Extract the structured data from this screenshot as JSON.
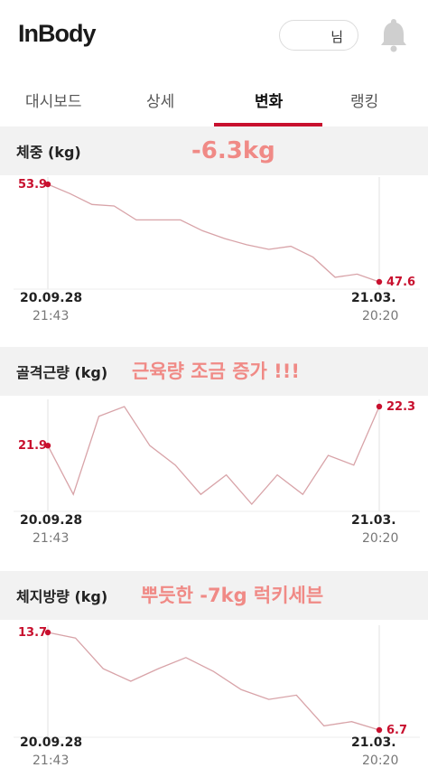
{
  "header": {
    "logo": "InBody",
    "user_suffix": "님"
  },
  "tabs": [
    {
      "label": "대시보드",
      "active": false
    },
    {
      "label": "상세",
      "active": false
    },
    {
      "label": "변화",
      "active": true
    },
    {
      "label": "랭킹",
      "active": false
    }
  ],
  "accent_color": "#c8102e",
  "sections": [
    {
      "title": "체중 (kg)",
      "annotation": "-6.3kg",
      "start_date": "20.09.28",
      "start_time": "21:43",
      "end_date": "21.03.",
      "end_time": "20:20"
    },
    {
      "title": "골격근량 (kg)",
      "annotation": "근육량 조금 증가 !!!",
      "start_date": "20.09.28",
      "start_time": "21:43",
      "end_date": "21.03.",
      "end_time": "20:20"
    },
    {
      "title": "체지방량 (kg)",
      "annotation": "뿌듯한 -7kg 럭키세븐",
      "start_date": "20.09.28",
      "start_time": "21:43",
      "end_date": "21.03.",
      "end_time": "20:20"
    }
  ],
  "chart_data": [
    {
      "type": "line",
      "title": "체중 (kg)",
      "first_label": "53.9",
      "last_label": "47.6",
      "y": [
        53.9,
        53.3,
        52.6,
        52.5,
        51.6,
        51.6,
        51.6,
        50.9,
        50.4,
        50.0,
        49.7,
        49.9,
        49.2,
        47.9,
        48.1,
        47.6
      ]
    },
    {
      "type": "line",
      "title": "골격근량 (kg)",
      "first_label": "21.9",
      "last_label": "22.3",
      "y": [
        21.9,
        21.4,
        22.2,
        22.3,
        21.9,
        21.7,
        21.4,
        21.6,
        21.3,
        21.6,
        21.4,
        21.8,
        21.7,
        22.3
      ]
    },
    {
      "type": "line",
      "title": "체지방량 (kg)",
      "first_label": "13.7",
      "last_label": "6.7",
      "y": [
        13.7,
        13.3,
        11.1,
        10.2,
        11.1,
        11.9,
        10.9,
        9.6,
        8.9,
        9.2,
        7.0,
        7.3,
        6.7
      ]
    }
  ]
}
